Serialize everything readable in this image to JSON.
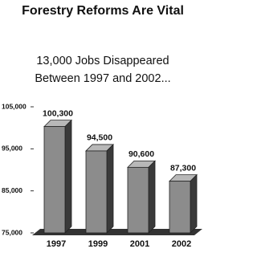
{
  "chart_data": {
    "type": "bar",
    "title": "Forestry Reforms Are Vital",
    "subtitle": [
      "13,000 Jobs Disappeared",
      "Between 1997 and 2002..."
    ],
    "categories": [
      "1997",
      "1999",
      "2001",
      "2002"
    ],
    "values": [
      100300,
      94500,
      90600,
      87300
    ],
    "value_labels": [
      "100,300",
      "94,500",
      "90,600",
      "87,300"
    ],
    "color": "#8c8c8c",
    "ylim": [
      75000,
      105000
    ],
    "yticks": [
      {
        "value": 75000,
        "label": "75,000"
      },
      {
        "value": 85000,
        "label": "85,000"
      },
      {
        "value": 95000,
        "label": "95,000"
      },
      {
        "value": 105000,
        "label": "105,000"
      }
    ],
    "grid": false
  }
}
